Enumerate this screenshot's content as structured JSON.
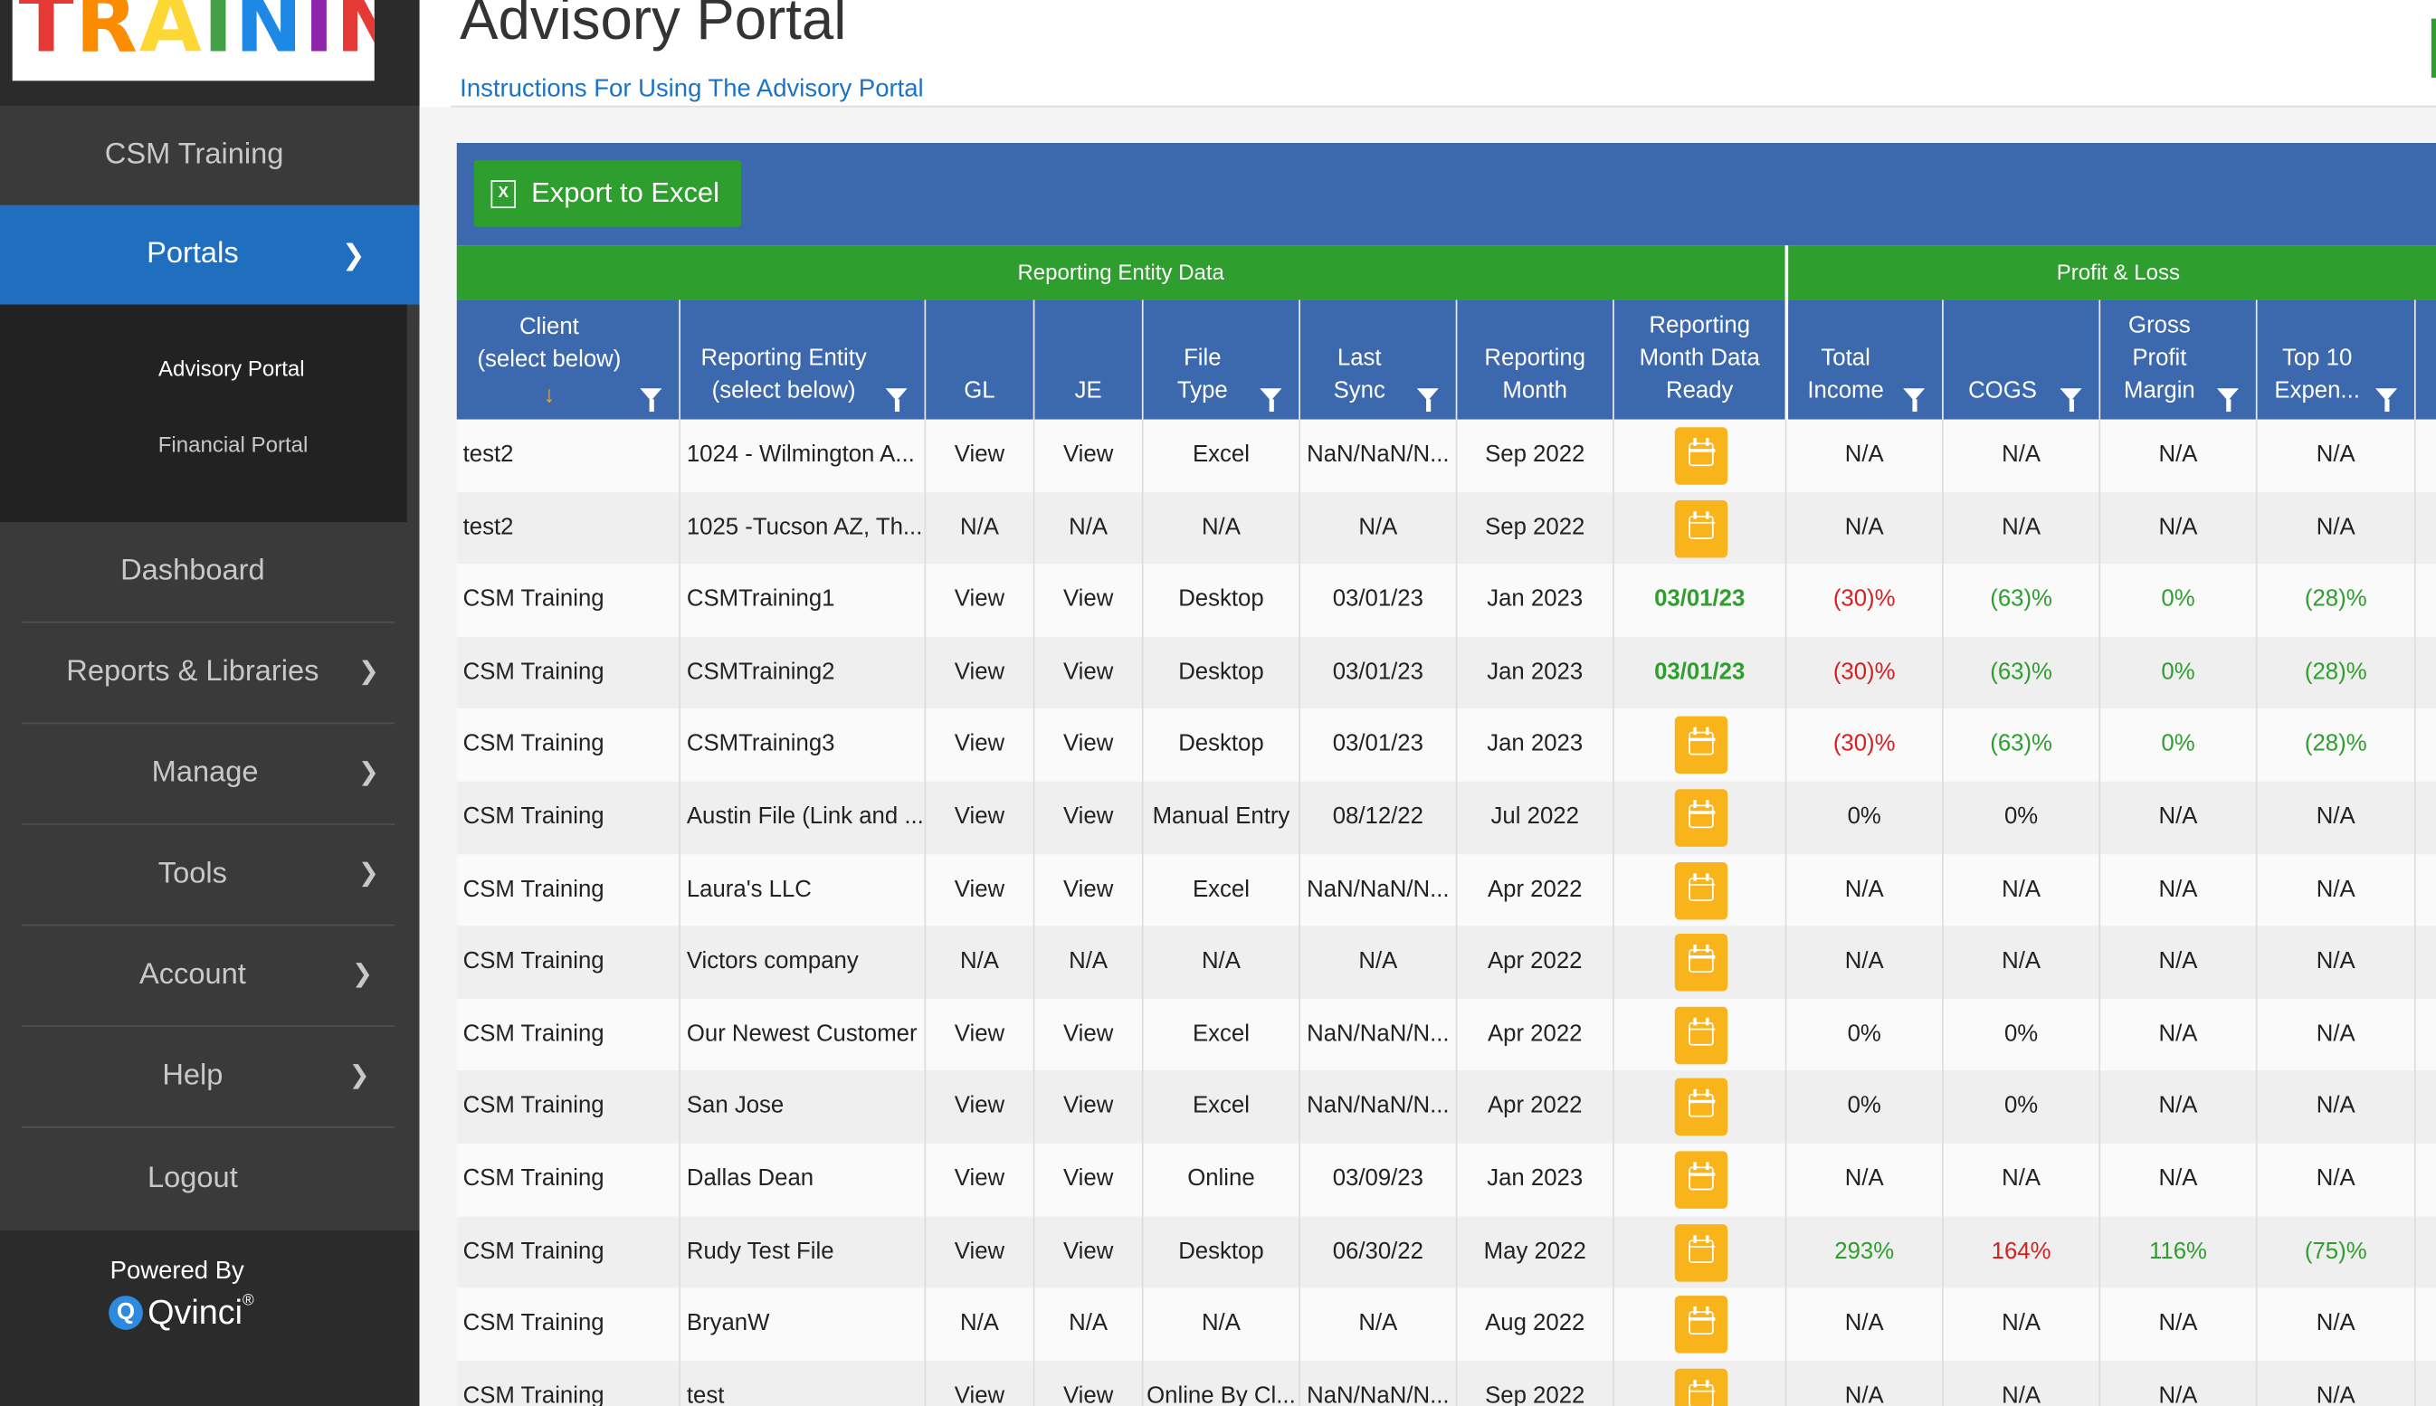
{
  "sidebar": {
    "logo_text": "TRAINING",
    "org_name": "CSM Training",
    "portals_label": "Portals",
    "sub_items": [
      "Advisory Portal",
      "Financial Portal"
    ],
    "nav_items": [
      "Dashboard",
      "Reports & Libraries",
      "Manage",
      "Tools",
      "Account",
      "Help",
      "Logout"
    ],
    "powered_by": "Powered By",
    "brand": "Qvinci",
    "brand_mark": "®"
  },
  "header": {
    "title": "Advisory Portal",
    "instructions_link": "Instructions For Using The Advisory Portal"
  },
  "toolbar": {
    "export_label": "Export to Excel",
    "export_icon": "X"
  },
  "groups": [
    "Reporting Entity Data",
    "Profit & Loss"
  ],
  "columns": [
    "Client\n(select below)",
    "Reporting Entity\n(select below)",
    "GL",
    "JE",
    "File\nType",
    "Last\nSync",
    "Reporting\nMonth",
    "Reporting\nMonth Data\nReady",
    "Total\nIncome",
    "COGS",
    "Gross\nProfit\nMargin",
    "Top 10\nExpen..."
  ],
  "sort_indicator": "↓",
  "rows": [
    {
      "client": "test2",
      "entity": "1024 - Wilmington A...",
      "gl": "View",
      "je": "View",
      "file_type": "Excel",
      "last_sync": "NaN/NaN/N...",
      "month": "Sep 2022",
      "ready": "",
      "income": "N/A",
      "cogs": "N/A",
      "gpm": "N/A",
      "top10": "N/A"
    },
    {
      "client": "test2",
      "entity": "1025 -Tucson AZ, Th...",
      "gl": "N/A",
      "je": "N/A",
      "file_type": "N/A",
      "last_sync": "N/A",
      "month": "Sep 2022",
      "ready": "",
      "income": "N/A",
      "cogs": "N/A",
      "gpm": "N/A",
      "top10": "N/A"
    },
    {
      "client": "CSM Training",
      "entity": "CSMTraining1",
      "gl": "View",
      "je": "View",
      "file_type": "Desktop",
      "last_sync": "03/01/23",
      "month": "Jan 2023",
      "ready": "03/01/23",
      "income": "(30)%",
      "cogs": "(63)%",
      "gpm": "0%",
      "top10": "(28)%"
    },
    {
      "client": "CSM Training",
      "entity": "CSMTraining2",
      "gl": "View",
      "je": "View",
      "file_type": "Desktop",
      "last_sync": "03/01/23",
      "month": "Jan 2023",
      "ready": "03/01/23",
      "income": "(30)%",
      "cogs": "(63)%",
      "gpm": "0%",
      "top10": "(28)%"
    },
    {
      "client": "CSM Training",
      "entity": "CSMTraining3",
      "gl": "View",
      "je": "View",
      "file_type": "Desktop",
      "last_sync": "03/01/23",
      "month": "Jan 2023",
      "ready": "",
      "income": "(30)%",
      "cogs": "(63)%",
      "gpm": "0%",
      "top10": "(28)%"
    },
    {
      "client": "CSM Training",
      "entity": "Austin File (Link and ...",
      "gl": "View",
      "je": "View",
      "file_type": "Manual Entry",
      "last_sync": "08/12/22",
      "month": "Jul 2022",
      "ready": "",
      "income": "0%",
      "cogs": "0%",
      "gpm": "N/A",
      "top10": "N/A"
    },
    {
      "client": "CSM Training",
      "entity": "Laura's LLC",
      "gl": "View",
      "je": "View",
      "file_type": "Excel",
      "last_sync": "NaN/NaN/N...",
      "month": "Apr 2022",
      "ready": "",
      "income": "N/A",
      "cogs": "N/A",
      "gpm": "N/A",
      "top10": "N/A"
    },
    {
      "client": "CSM Training",
      "entity": "Victors company",
      "gl": "N/A",
      "je": "N/A",
      "file_type": "N/A",
      "last_sync": "N/A",
      "month": "Apr 2022",
      "ready": "",
      "income": "N/A",
      "cogs": "N/A",
      "gpm": "N/A",
      "top10": "N/A"
    },
    {
      "client": "CSM Training",
      "entity": "Our Newest Customer",
      "gl": "View",
      "je": "View",
      "file_type": "Excel",
      "last_sync": "NaN/NaN/N...",
      "month": "Apr 2022",
      "ready": "",
      "income": "0%",
      "cogs": "0%",
      "gpm": "N/A",
      "top10": "N/A"
    },
    {
      "client": "CSM Training",
      "entity": "San Jose",
      "gl": "View",
      "je": "View",
      "file_type": "Excel",
      "last_sync": "NaN/NaN/N...",
      "month": "Apr 2022",
      "ready": "",
      "income": "0%",
      "cogs": "0%",
      "gpm": "N/A",
      "top10": "N/A"
    },
    {
      "client": "CSM Training",
      "entity": "Dallas Dean",
      "gl": "View",
      "je": "View",
      "file_type": "Online",
      "last_sync": "03/09/23",
      "month": "Jan 2023",
      "ready": "",
      "income": "N/A",
      "cogs": "N/A",
      "gpm": "N/A",
      "top10": "N/A"
    },
    {
      "client": "CSM Training",
      "entity": "Rudy Test File",
      "gl": "View",
      "je": "View",
      "file_type": "Desktop",
      "last_sync": "06/30/22",
      "month": "May 2022",
      "ready": "",
      "income": "293%",
      "cogs": "164%",
      "gpm": "116%",
      "top10": "(75)%"
    },
    {
      "client": "CSM Training",
      "entity": "BryanW",
      "gl": "N/A",
      "je": "N/A",
      "file_type": "N/A",
      "last_sync": "N/A",
      "month": "Aug 2022",
      "ready": "",
      "income": "N/A",
      "cogs": "N/A",
      "gpm": "N/A",
      "top10": "N/A"
    },
    {
      "client": "CSM Training",
      "entity": "test",
      "gl": "View",
      "je": "View",
      "file_type": "Online By Cl...",
      "last_sync": "NaN/NaN/N...",
      "month": "Sep 2022",
      "ready": "",
      "income": "N/A",
      "cogs": "N/A",
      "gpm": "N/A",
      "top10": "N/A"
    }
  ],
  "value_colors": {
    "(30)%": "#d42020",
    "(63)%": "#2e9e2e",
    "0%_pl": "#2e9e2e",
    "(28)%": "#2e9e2e",
    "293%": "#2e9e2e",
    "164%": "#d42020",
    "116%": "#2e9e2e",
    "(75)%": "#2e9e2e"
  },
  "colors": {
    "sidebar_bg": "#3a3a3a",
    "active_nav": "#1f6fbe",
    "header_blue": "#3c69ad",
    "group_green": "#2e9e2e",
    "calendar_orange": "#f9b41c"
  }
}
